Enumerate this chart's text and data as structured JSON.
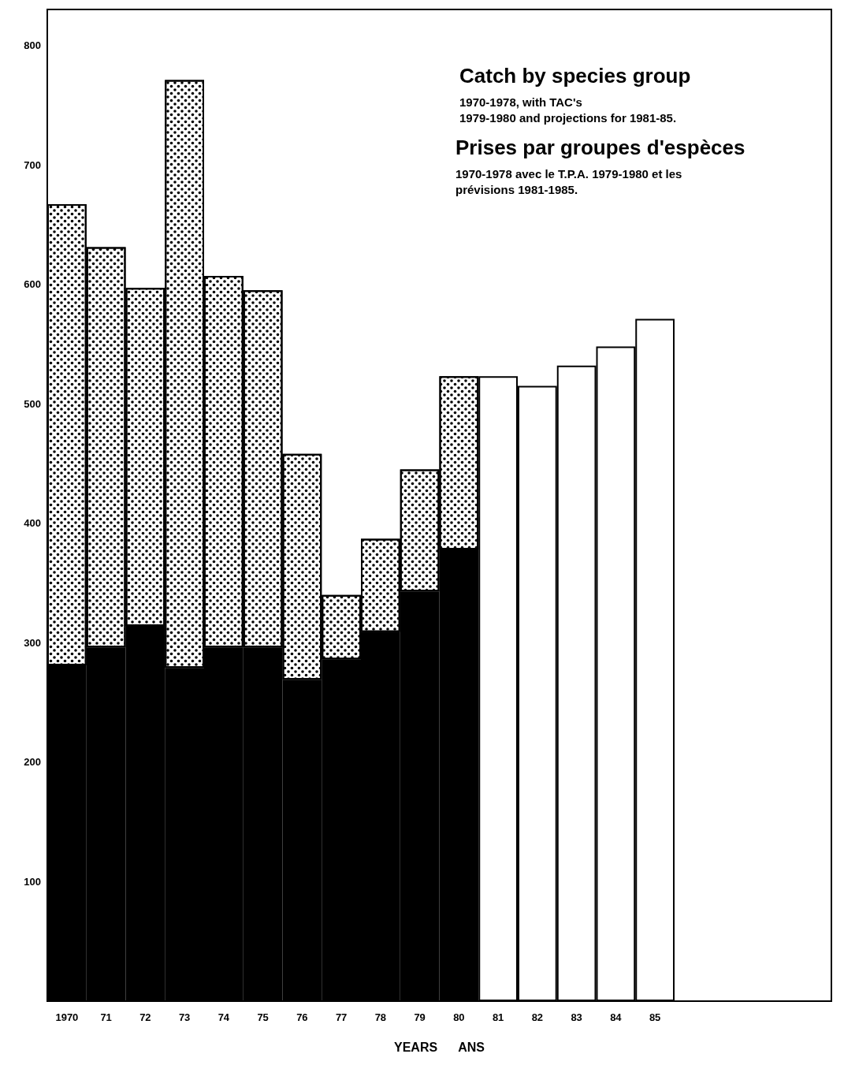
{
  "chart_data": {
    "type": "bar",
    "title": "Catch by species group",
    "subtitle": "1970-1978, with TAC's\n1979-1980 and projections for 1981-85.",
    "annotations": [
      "Prises par groupes d'espèces",
      "1970-1978 avec le T.P.A. 1979-1980 et les\nprévisions 1981-1985."
    ],
    "xlabel": "YEARS      ANS",
    "categories": [
      "1970",
      "71",
      "72",
      "73",
      "74",
      "75",
      "76",
      "77",
      "78",
      "79",
      "80",
      "81",
      "82",
      "83",
      "84",
      "85"
    ],
    "stacked": true,
    "series": [
      {
        "color": "#000000",
        "values": [
          281,
          296,
          314,
          279,
          296,
          296,
          269,
          286,
          309,
          343,
          378,
          null,
          null,
          null,
          null,
          null
        ]
      },
      {
        "color": "#000000",
        "values": [
          386,
          335,
          283,
          492,
          311,
          299,
          189,
          54,
          78,
          102,
          145,
          null,
          null,
          null,
          null,
          null
        ]
      },
      {
        "color": "#ffffff",
        "values": [
          null,
          null,
          null,
          null,
          null,
          null,
          null,
          null,
          null,
          null,
          null,
          523,
          515,
          532,
          548,
          571
        ]
      }
    ],
    "ylim": [
      0,
      830
    ],
    "yticks": [
      100,
      200,
      300,
      400,
      500,
      600,
      700,
      800
    ],
    "grid": false
  }
}
